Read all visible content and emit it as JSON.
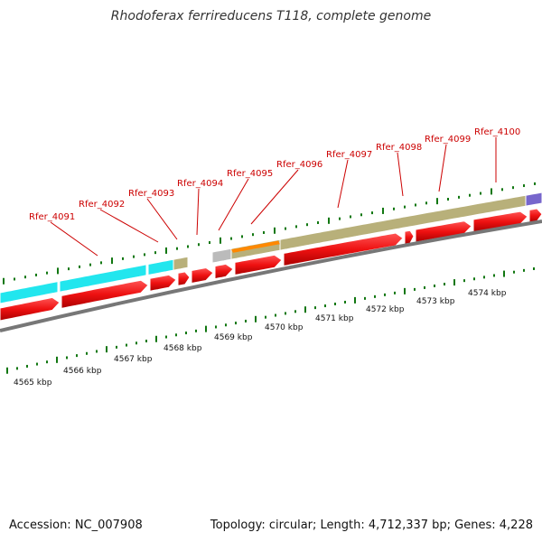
{
  "title": "Rhodoferax ferrireducens T118, complete genome",
  "footer": {
    "accession": "Accession: NC_007908",
    "summary": "Topology: circular; Length: 4,712,337 bp; Genes: 4,228"
  },
  "colors": {
    "forward_gene": "#ee1111",
    "cyan_feature": "#22e6ee",
    "khaki_feature": "#b8b07a",
    "orange_feature": "#ff8800",
    "gray_feature": "#bbbbbb",
    "purple_feature": "#7766cc",
    "tick_green": "#117711",
    "label_red": "#cc0000"
  },
  "gene_labels": [
    {
      "name": "Rfer_4091"
    },
    {
      "name": "Rfer_4092"
    },
    {
      "name": "Rfer_4093"
    },
    {
      "name": "Rfer_4094"
    },
    {
      "name": "Rfer_4095"
    },
    {
      "name": "Rfer_4096"
    },
    {
      "name": "Rfer_4097"
    },
    {
      "name": "Rfer_4098"
    },
    {
      "name": "Rfer_4099"
    },
    {
      "name": "Rfer_4100"
    }
  ],
  "scale_labels": [
    "4565 kbp",
    "4566 kbp",
    "4567 kbp",
    "4568 kbp",
    "4569 kbp",
    "4570 kbp",
    "4571 kbp",
    "4572 kbp",
    "4573 kbp",
    "4574 kbp"
  ]
}
